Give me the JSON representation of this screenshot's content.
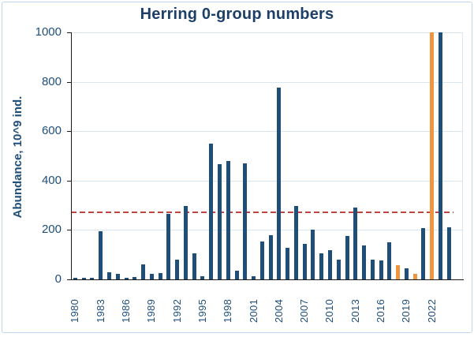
{
  "title": "Herring 0-group numbers",
  "y_axis": {
    "title": "Abundance, 10^9 ind.",
    "ticks": [
      0,
      200,
      400,
      600,
      800,
      1000
    ],
    "max": 1000
  },
  "x_axis": {
    "tick_labels": [
      "1980",
      "1983",
      "1986",
      "1989",
      "1992",
      "1995",
      "1998",
      "2001",
      "2004",
      "2007",
      "2010",
      "2013",
      "2016",
      "2019",
      "2022"
    ]
  },
  "chart_data": {
    "type": "bar",
    "title": "Herring 0-group numbers",
    "ylabel": "Abundance, 10^9 ind.",
    "xlabel": "",
    "ylim": [
      0,
      1000
    ],
    "grid": "horizontal",
    "x": [
      1980,
      1981,
      1982,
      1983,
      1984,
      1985,
      1986,
      1987,
      1988,
      1989,
      1990,
      1991,
      1992,
      1993,
      1994,
      1995,
      1996,
      1997,
      1998,
      1999,
      2000,
      2001,
      2002,
      2003,
      2004,
      2005,
      2006,
      2007,
      2008,
      2009,
      2010,
      2011,
      2012,
      2013,
      2014,
      2015,
      2016,
      2017,
      2018,
      2019,
      2020,
      2021,
      2022,
      2023,
      2024
    ],
    "values": [
      6,
      5,
      6,
      195,
      28,
      21,
      7,
      8,
      60,
      21,
      26,
      264,
      81,
      296,
      104,
      12,
      550,
      465,
      478,
      35,
      470,
      12,
      152,
      178,
      776,
      127,
      296,
      143,
      201,
      106,
      118,
      80,
      175,
      290,
      136,
      81,
      78,
      151,
      56,
      45,
      23,
      208,
      1000,
      1000,
      210
    ],
    "orange_years": [
      2018,
      2020,
      2022
    ],
    "clipped_at_axis_max_years": [
      2022,
      2023
    ],
    "mean_line": {
      "value": 272,
      "style": "dashed",
      "color": "#C0443F"
    }
  },
  "colors": {
    "bar_default": "#1F4E79",
    "bar_highlight": "#F0953F",
    "gridline": "#D8E6F2",
    "chart_border": "#BDD7EE",
    "title_text": "#1E3F68",
    "axis_text": "#1F4E79",
    "mean_line": "#C0443F",
    "axis_line": "#1A1A1A"
  }
}
